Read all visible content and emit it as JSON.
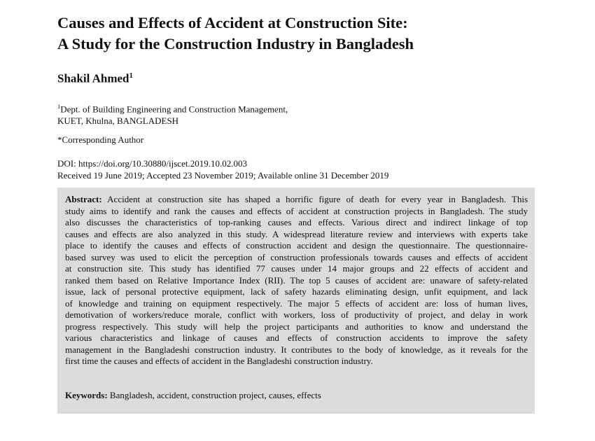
{
  "title_lines": [
    "Causes and Effects of Accident at Construction Site:",
    "A Study for the Construction Industry in Bangladesh"
  ],
  "author": {
    "name": "Shakil Ahmed",
    "sup": "1"
  },
  "affiliation": {
    "sup": "1",
    "line1": "Dept. of Building Engineering and Construction Management,",
    "line2": "KUET, Khulna, BANGLADESH"
  },
  "corresponding": "*Corresponding Author",
  "doi": "DOI: https://doi.org/10.30880/ijscet.2019.10.02.003",
  "dates": "Received 19 June 2019; Accepted 23 November 2019; Available online 31 December 2019",
  "abstract": {
    "label": "Abstract:",
    "lines": [
      " Accident at construction site has shaped a horrific figure of death for every year in Bangladesh. This",
      "study aims to identify and rank the causes and effects of accident at construction projects in Bangladesh. The study",
      "also discusses the characteristics of top-ranking causes and effects. Various direct and indirect linkage of top",
      "causes and effects are also analyzed in this study. A widespread literature review and interviews with experts take",
      "place to identify the causes and effects of construction accident and design the questionnaire. The questionnaire-",
      "based survey was used to elicit the perception of construction professionals towards causes and effects of accident",
      "at construction site. This study has identified 77 causes under 14 major groups and 22 effects of accident and",
      "ranked them based on Relative Importance Index (RII). The top 5 causes of accident are: unaware of safety-related",
      "issue, lack of personal protective equipment, lack of safety hazards eliminating design, unfit equipment, and lack",
      "of knowledge and training on equipment respectively. The major 5 effects of accident are: loss of human lives,",
      "demotivation of workers/reduce morale, conflict with workers, loss of productivity of project, and delay in work",
      "progress respectively. This study will help the project participants and authorities to know and understand the",
      "various characteristics and linkage of causes and effects of construction accidents to improve the safety",
      "management in the Bangladeshi construction industry. It contributes to the body of knowledge, as it reveals for the",
      "first time the causes and effects of accident in the Bangladeshi construction industry."
    ]
  },
  "keywords": {
    "label": "Keywords:",
    "text": " Bangladesh, accident, construction project, causes, effects"
  },
  "colors": {
    "abstract_bg": "#dcdcdc"
  }
}
